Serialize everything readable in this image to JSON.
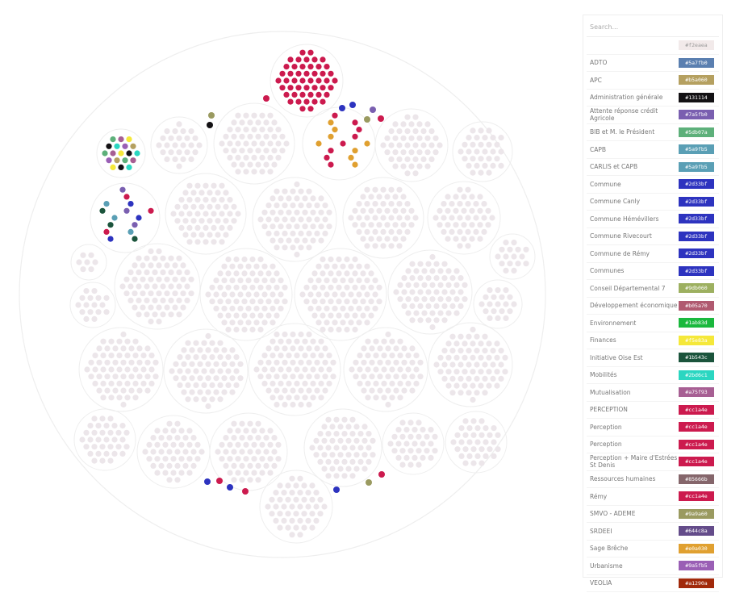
{
  "search": {
    "placeholder": "Search..."
  },
  "legend": {
    "top_color": "#f2eaea",
    "items": [
      {
        "name": "ADTO",
        "color": "#5a7fb0"
      },
      {
        "name": "APC",
        "color": "#b5a060"
      },
      {
        "name": "Administration générale",
        "color": "#131114"
      },
      {
        "name": "Attente réponse crédit Agricole",
        "color": "#7a5fb0"
      },
      {
        "name": "BIB et M. le Président",
        "color": "#5db07a"
      },
      {
        "name": "CAPB",
        "color": "#5a9fb5"
      },
      {
        "name": "CARLIS et CAPB",
        "color": "#5a9fb5"
      },
      {
        "name": "Commune",
        "color": "#2d33bf"
      },
      {
        "name": "Commune Canly",
        "color": "#2d33bf"
      },
      {
        "name": "Commune Hémévillers",
        "color": "#2d33bf"
      },
      {
        "name": "Commune Rivecourt",
        "color": "#2d33bf"
      },
      {
        "name": "Commune de Rémy",
        "color": "#2d33bf"
      },
      {
        "name": "Communes",
        "color": "#2d33bf"
      },
      {
        "name": "Conseil Départemental 7",
        "color": "#9db060"
      },
      {
        "name": "Développement économique",
        "color": "#b05a70"
      },
      {
        "name": "Environnement",
        "color": "#1ab83d"
      },
      {
        "name": "Finances",
        "color": "#f5e83a"
      },
      {
        "name": "Initiative Oise Est",
        "color": "#1b543c"
      },
      {
        "name": "Mobilités",
        "color": "#2bd6c1"
      },
      {
        "name": "Mutualisation",
        "color": "#a75f93"
      },
      {
        "name": "PERCEPTION",
        "color": "#cc1a4e"
      },
      {
        "name": "Perception",
        "color": "#cc1a4e"
      },
      {
        "name": "Perception",
        "color": "#cc1a4e"
      },
      {
        "name": "Perception + Maire d'Estrées St Denis",
        "color": "#cc1a4e"
      },
      {
        "name": "Ressources humaines",
        "color": "#85666b"
      },
      {
        "name": "Rémy",
        "color": "#cc1a4e"
      },
      {
        "name": "SMVO - ADEME",
        "color": "#9a9a60"
      },
      {
        "name": "SRDEEI",
        "color": "#644c8a"
      },
      {
        "name": "Sage Brêche",
        "color": "#e0a030"
      },
      {
        "name": "Urbanisme",
        "color": "#9a5fb5"
      },
      {
        "name": "VEOLIA",
        "color": "#a1290a"
      }
    ]
  }
}
